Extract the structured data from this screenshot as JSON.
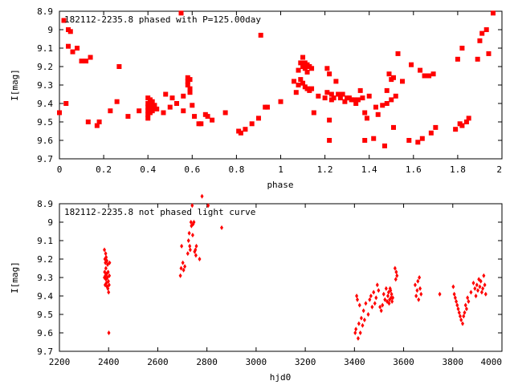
{
  "chart_data": [
    {
      "type": "scatter",
      "title": "182112-2235.8 phased with P=125.00day",
      "xlabel": "phase",
      "ylabel": "I[mag]",
      "xlim": [
        0,
        2
      ],
      "ylim": [
        9.7,
        8.9
      ],
      "y_inverted": true,
      "xticks": [
        "0",
        "0.2",
        "0.4",
        "0.6",
        "0.8",
        "1",
        "1.2",
        "1.4",
        "1.6",
        "1.8",
        "2"
      ],
      "yticks": [
        "8.9",
        "9",
        "9.1",
        "9.2",
        "9.3",
        "9.4",
        "9.5",
        "9.6",
        "9.7"
      ],
      "grid": false,
      "color": "#ff0000",
      "marker": "filled-square",
      "points": [
        [
          0.0,
          9.45
        ],
        [
          0.02,
          8.95
        ],
        [
          0.03,
          9.4
        ],
        [
          0.04,
          9.0
        ],
        [
          0.05,
          9.01
        ],
        [
          0.04,
          9.09
        ],
        [
          0.06,
          9.12
        ],
        [
          0.08,
          9.1
        ],
        [
          0.1,
          9.17
        ],
        [
          0.12,
          9.17
        ],
        [
          0.14,
          9.15
        ],
        [
          0.13,
          9.5
        ],
        [
          0.17,
          9.52
        ],
        [
          0.18,
          9.5
        ],
        [
          0.23,
          9.44
        ],
        [
          0.26,
          9.39
        ],
        [
          0.27,
          9.2
        ],
        [
          0.31,
          9.47
        ],
        [
          0.36,
          9.44
        ],
        [
          0.4,
          9.37
        ],
        [
          0.4,
          9.4
        ],
        [
          0.4,
          9.42
        ],
        [
          0.4,
          9.44
        ],
        [
          0.4,
          9.46
        ],
        [
          0.4,
          9.48
        ],
        [
          0.41,
          9.38
        ],
        [
          0.41,
          9.41
        ],
        [
          0.41,
          9.43
        ],
        [
          0.41,
          9.45
        ],
        [
          0.42,
          9.39
        ],
        [
          0.42,
          9.42
        ],
        [
          0.42,
          9.44
        ],
        [
          0.43,
          9.41
        ],
        [
          0.44,
          9.43
        ],
        [
          0.47,
          9.45
        ],
        [
          0.48,
          9.35
        ],
        [
          0.5,
          9.42
        ],
        [
          0.51,
          9.37
        ],
        [
          0.53,
          9.4
        ],
        [
          0.55,
          8.91
        ],
        [
          0.56,
          9.36
        ],
        [
          0.56,
          9.44
        ],
        [
          0.58,
          9.26
        ],
        [
          0.58,
          9.28
        ],
        [
          0.58,
          9.3
        ],
        [
          0.59,
          9.27
        ],
        [
          0.59,
          9.32
        ],
        [
          0.59,
          9.34
        ],
        [
          0.6,
          9.41
        ],
        [
          0.61,
          9.47
        ],
        [
          0.63,
          9.51
        ],
        [
          0.64,
          9.51
        ],
        [
          0.66,
          9.46
        ],
        [
          0.67,
          9.47
        ],
        [
          0.69,
          9.49
        ],
        [
          0.75,
          9.45
        ],
        [
          0.81,
          9.55
        ],
        [
          0.82,
          9.56
        ],
        [
          0.84,
          9.54
        ],
        [
          0.87,
          9.51
        ],
        [
          0.9,
          9.48
        ],
        [
          0.91,
          9.03
        ],
        [
          0.93,
          9.42
        ],
        [
          0.94,
          9.42
        ],
        [
          1.0,
          9.39
        ],
        [
          1.06,
          9.28
        ],
        [
          1.07,
          9.34
        ],
        [
          1.08,
          9.22
        ],
        [
          1.08,
          9.3
        ],
        [
          1.09,
          9.18
        ],
        [
          1.09,
          9.27
        ],
        [
          1.1,
          9.15
        ],
        [
          1.1,
          9.2
        ],
        [
          1.1,
          9.29
        ],
        [
          1.11,
          9.18
        ],
        [
          1.11,
          9.21
        ],
        [
          1.11,
          9.31
        ],
        [
          1.12,
          9.19
        ],
        [
          1.12,
          9.23
        ],
        [
          1.12,
          9.32
        ],
        [
          1.13,
          9.2
        ],
        [
          1.13,
          9.33
        ],
        [
          1.14,
          9.21
        ],
        [
          1.14,
          9.32
        ],
        [
          1.15,
          9.45
        ],
        [
          1.17,
          9.36
        ],
        [
          1.2,
          9.37
        ],
        [
          1.21,
          9.34
        ],
        [
          1.21,
          9.21
        ],
        [
          1.22,
          9.24
        ],
        [
          1.22,
          9.6
        ],
        [
          1.22,
          9.49
        ],
        [
          1.23,
          9.35
        ],
        [
          1.23,
          9.38
        ],
        [
          1.24,
          9.37
        ],
        [
          1.25,
          9.28
        ],
        [
          1.26,
          9.35
        ],
        [
          1.27,
          9.37
        ],
        [
          1.28,
          9.35
        ],
        [
          1.29,
          9.39
        ],
        [
          1.3,
          9.37
        ],
        [
          1.31,
          9.37
        ],
        [
          1.32,
          9.38
        ],
        [
          1.33,
          9.38
        ],
        [
          1.34,
          9.4
        ],
        [
          1.35,
          9.38
        ],
        [
          1.36,
          9.33
        ],
        [
          1.37,
          9.37
        ],
        [
          1.38,
          9.6
        ],
        [
          1.38,
          9.45
        ],
        [
          1.39,
          9.48
        ],
        [
          1.4,
          9.36
        ],
        [
          1.42,
          9.59
        ],
        [
          1.43,
          9.42
        ],
        [
          1.44,
          9.46
        ],
        [
          1.46,
          9.41
        ],
        [
          1.47,
          9.63
        ],
        [
          1.48,
          9.4
        ],
        [
          1.48,
          9.33
        ],
        [
          1.49,
          9.24
        ],
        [
          1.5,
          9.38
        ],
        [
          1.5,
          9.27
        ],
        [
          1.51,
          9.26
        ],
        [
          1.51,
          9.53
        ],
        [
          1.52,
          9.36
        ],
        [
          1.53,
          9.13
        ],
        [
          1.55,
          9.28
        ],
        [
          1.58,
          9.6
        ],
        [
          1.59,
          9.19
        ],
        [
          1.62,
          9.61
        ],
        [
          1.63,
          9.22
        ],
        [
          1.64,
          9.59
        ],
        [
          1.65,
          9.25
        ],
        [
          1.67,
          9.25
        ],
        [
          1.68,
          9.56
        ],
        [
          1.69,
          9.24
        ],
        [
          1.7,
          9.53
        ],
        [
          1.79,
          9.54
        ],
        [
          1.8,
          9.16
        ],
        [
          1.81,
          9.51
        ],
        [
          1.82,
          9.52
        ],
        [
          1.82,
          9.1
        ],
        [
          1.84,
          9.5
        ],
        [
          1.85,
          9.48
        ],
        [
          1.89,
          9.16
        ],
        [
          1.9,
          9.06
        ],
        [
          1.91,
          9.02
        ],
        [
          1.93,
          9.0
        ],
        [
          1.94,
          9.13
        ],
        [
          1.96,
          8.91
        ]
      ]
    },
    {
      "type": "scatter",
      "title": "182112-2235.8 not phased light curve",
      "xlabel": "hjd0",
      "ylabel": "I[mag]",
      "xlim": [
        2200,
        4000
      ],
      "ylim": [
        9.7,
        8.9
      ],
      "y_inverted": true,
      "xticks": [
        "2200",
        "2400",
        "2600",
        "2800",
        "3000",
        "3200",
        "3400",
        "3600",
        "3800",
        "4000"
      ],
      "yticks": [
        "8.9",
        "9",
        "9.1",
        "9.2",
        "9.3",
        "9.4",
        "9.5",
        "9.6",
        "9.7"
      ],
      "grid": false,
      "color": "#ff0000",
      "marker": "filled-diamond",
      "points": [
        [
          2383,
          9.15
        ],
        [
          2383,
          9.3
        ],
        [
          2384,
          9.27
        ],
        [
          2385,
          9.2
        ],
        [
          2386,
          9.34
        ],
        [
          2387,
          9.22
        ],
        [
          2387,
          9.29
        ],
        [
          2388,
          9.17
        ],
        [
          2389,
          9.31
        ],
        [
          2389,
          9.25
        ],
        [
          2390,
          9.19
        ],
        [
          2391,
          9.33
        ],
        [
          2392,
          9.28
        ],
        [
          2393,
          9.21
        ],
        [
          2394,
          9.35
        ],
        [
          2395,
          9.3
        ],
        [
          2396,
          9.23
        ],
        [
          2397,
          9.36
        ],
        [
          2398,
          9.27
        ],
        [
          2399,
          9.32
        ],
        [
          2400,
          9.38
        ],
        [
          2401,
          9.6
        ],
        [
          2402,
          9.34
        ],
        [
          2403,
          9.29
        ],
        [
          2404,
          9.22
        ],
        [
          2692,
          9.29
        ],
        [
          2695,
          9.25
        ],
        [
          2697,
          9.13
        ],
        [
          2702,
          9.22
        ],
        [
          2705,
          9.26
        ],
        [
          2710,
          9.24
        ],
        [
          2722,
          9.17
        ],
        [
          2725,
          9.1
        ],
        [
          2728,
          9.06
        ],
        [
          2730,
          9.13
        ],
        [
          2732,
          9.15
        ],
        [
          2735,
          9.0
        ],
        [
          2737,
          9.02
        ],
        [
          2740,
          8.91
        ],
        [
          2742,
          9.07
        ],
        [
          2744,
          9.01
        ],
        [
          2747,
          9.0
        ],
        [
          2750,
          9.16
        ],
        [
          2753,
          9.15
        ],
        [
          2755,
          9.18
        ],
        [
          2757,
          9.13
        ],
        [
          2770,
          9.2
        ],
        [
          2780,
          8.86
        ],
        [
          2805,
          8.91
        ],
        [
          2860,
          9.03
        ],
        [
          3403,
          9.6
        ],
        [
          3406,
          9.58
        ],
        [
          3409,
          9.4
        ],
        [
          3412,
          9.42
        ],
        [
          3415,
          9.63
        ],
        [
          3418,
          9.55
        ],
        [
          3421,
          9.45
        ],
        [
          3424,
          9.6
        ],
        [
          3428,
          9.52
        ],
        [
          3433,
          9.56
        ],
        [
          3437,
          9.48
        ],
        [
          3441,
          9.53
        ],
        [
          3446,
          9.44
        ],
        [
          3456,
          9.5
        ],
        [
          3462,
          9.42
        ],
        [
          3467,
          9.4
        ],
        [
          3472,
          9.46
        ],
        [
          3478,
          9.38
        ],
        [
          3483,
          9.44
        ],
        [
          3488,
          9.41
        ],
        [
          3493,
          9.34
        ],
        [
          3498,
          9.37
        ],
        [
          3504,
          9.46
        ],
        [
          3509,
          9.48
        ],
        [
          3514,
          9.45
        ],
        [
          3519,
          9.39
        ],
        [
          3524,
          9.42
        ],
        [
          3529,
          9.36
        ],
        [
          3533,
          9.43
        ],
        [
          3536,
          9.4
        ],
        [
          3539,
          9.38
        ],
        [
          3541,
          9.44
        ],
        [
          3543,
          9.42
        ],
        [
          3545,
          9.36
        ],
        [
          3547,
          9.37
        ],
        [
          3549,
          9.41
        ],
        [
          3551,
          9.39
        ],
        [
          3553,
          9.43
        ],
        [
          3556,
          9.41
        ],
        [
          3565,
          9.25
        ],
        [
          3568,
          9.31
        ],
        [
          3570,
          9.27
        ],
        [
          3573,
          9.29
        ],
        [
          3647,
          9.34
        ],
        [
          3651,
          9.4
        ],
        [
          3655,
          9.37
        ],
        [
          3658,
          9.32
        ],
        [
          3661,
          9.42
        ],
        [
          3664,
          9.3
        ],
        [
          3667,
          9.36
        ],
        [
          3671,
          9.39
        ],
        [
          3747,
          9.39
        ],
        [
          3802,
          9.35
        ],
        [
          3806,
          9.39
        ],
        [
          3810,
          9.41
        ],
        [
          3814,
          9.43
        ],
        [
          3818,
          9.45
        ],
        [
          3822,
          9.47
        ],
        [
          3826,
          9.49
        ],
        [
          3830,
          9.51
        ],
        [
          3834,
          9.53
        ],
        [
          3840,
          9.55
        ],
        [
          3844,
          9.51
        ],
        [
          3848,
          9.49
        ],
        [
          3852,
          9.45
        ],
        [
          3856,
          9.47
        ],
        [
          3860,
          9.41
        ],
        [
          3864,
          9.43
        ],
        [
          3874,
          9.38
        ],
        [
          3884,
          9.33
        ],
        [
          3890,
          9.36
        ],
        [
          3894,
          9.4
        ],
        [
          3898,
          9.34
        ],
        [
          3902,
          9.37
        ],
        [
          3906,
          9.31
        ],
        [
          3910,
          9.35
        ],
        [
          3914,
          9.32
        ],
        [
          3918,
          9.38
        ],
        [
          3922,
          9.36
        ],
        [
          3926,
          9.29
        ],
        [
          3930,
          9.34
        ],
        [
          3934,
          9.39
        ]
      ]
    }
  ]
}
